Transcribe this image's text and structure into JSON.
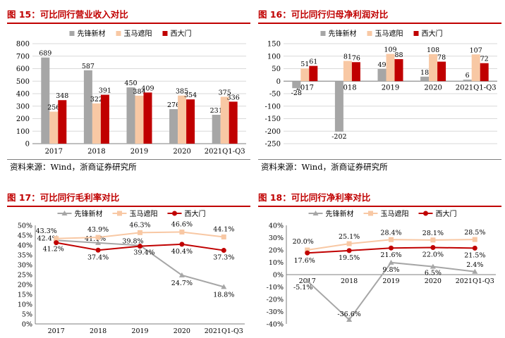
{
  "colors": {
    "xiangfeng": "#a6a6a6",
    "yuma": "#f8c8a4",
    "ximen": "#c00000",
    "title": "#c00000"
  },
  "panels": [
    {
      "title": "图 15：可比同行营业收入对比",
      "source": "资料来源：Wind，浙商证券研究所",
      "chart_data": {
        "type": "bar",
        "categories": [
          "2017",
          "2018",
          "2019",
          "2020",
          "2021Q1-Q3"
        ],
        "series": [
          {
            "name": "先锋新材",
            "values": [
              689,
              587,
              450,
              276,
              231
            ]
          },
          {
            "name": "玉马遮阳",
            "values": [
              256,
              322,
              384,
              385,
              375
            ]
          },
          {
            "name": "西大门",
            "values": [
              348,
              391,
              409,
              354,
              336
            ]
          }
        ],
        "ylim": [
          0,
          800
        ],
        "yticks": [
          0,
          100,
          200,
          300,
          400,
          500,
          600,
          700,
          800
        ],
        "grid": true,
        "legend": "top"
      }
    },
    {
      "title": "图 16：可比同行归母净利润对比",
      "source": "资料来源：Wind，浙商证券研究所",
      "chart_data": {
        "type": "bar",
        "categories": [
          "2017",
          "2018",
          "2019",
          "2020",
          "2021Q1-Q3"
        ],
        "series": [
          {
            "name": "先锋新材",
            "values": [
              -28,
              -202,
              49,
              18,
              6
            ]
          },
          {
            "name": "玉马遮阳",
            "values": [
              51,
              81,
              109,
              108,
              107
            ]
          },
          {
            "name": "西大门",
            "values": [
              61,
              76,
              88,
              78,
              72
            ]
          }
        ],
        "ylim": [
          -250,
          150
        ],
        "yticks": [
          -250,
          -200,
          -150,
          -100,
          -50,
          0,
          50,
          100,
          150
        ],
        "grid": true,
        "legend": "top"
      }
    },
    {
      "title": "图 17：可比同行毛利率对比",
      "chart_data": {
        "type": "line",
        "categories": [
          "2017",
          "2018",
          "2019",
          "2020",
          "2021Q1-Q3"
        ],
        "series": [
          {
            "name": "先锋新材",
            "values": [
              42.4,
              41.1,
              39.8,
              24.7,
              18.8
            ],
            "labels": [
              "42.4%",
              "41.1%",
              "39.8%",
              "24.7%",
              "18.8%"
            ]
          },
          {
            "name": "玉马遮阳",
            "values": [
              43.3,
              43.9,
              46.3,
              46.6,
              44.1
            ],
            "labels": [
              "43.3%",
              "43.9%",
              "46.3%",
              "46.6%",
              "44.1%"
            ]
          },
          {
            "name": "西大门",
            "values": [
              41.2,
              37.4,
              39.4,
              40.4,
              37.3
            ],
            "labels": [
              "41.2%",
              "37.4%",
              "39.4%",
              "40.4%",
              "37.3%"
            ]
          }
        ],
        "ylim": [
          0,
          50
        ],
        "yticks": [
          "0%",
          "5%",
          "10%",
          "15%",
          "20%",
          "25%",
          "30%",
          "35%",
          "40%",
          "45%",
          "50%"
        ],
        "grid": false,
        "legend": "top"
      }
    },
    {
      "title": "图 18：可比同行净利率对比",
      "chart_data": {
        "type": "line",
        "categories": [
          "2017",
          "2018",
          "2019",
          "2020",
          "2021Q1-Q3"
        ],
        "series": [
          {
            "name": "先锋新材",
            "values": [
              -5.1,
              -36.6,
              9.8,
              6.5,
              2.4
            ],
            "labels": [
              "-5.1%",
              "-36.6%",
              "9.8%",
              "6.5%",
              "2.4%"
            ]
          },
          {
            "name": "玉马遮阳",
            "values": [
              20.0,
              25.1,
              28.4,
              28.1,
              28.5
            ],
            "labels": [
              "20.0%",
              "25.1%",
              "28.4%",
              "28.1%",
              "28.5%"
            ]
          },
          {
            "name": "西大门",
            "values": [
              17.6,
              19.5,
              21.6,
              22.0,
              21.5
            ],
            "labels": [
              "17.6%",
              "19.5%",
              "21.6%",
              "22.0%",
              "21.5%"
            ]
          }
        ],
        "ylim": [
          -40,
          40
        ],
        "yticks": [
          "-40%",
          "-30%",
          "-20%",
          "-10%",
          "0%",
          "10%",
          "20%",
          "30%",
          "40%"
        ],
        "grid": false,
        "legend": "top"
      }
    }
  ]
}
